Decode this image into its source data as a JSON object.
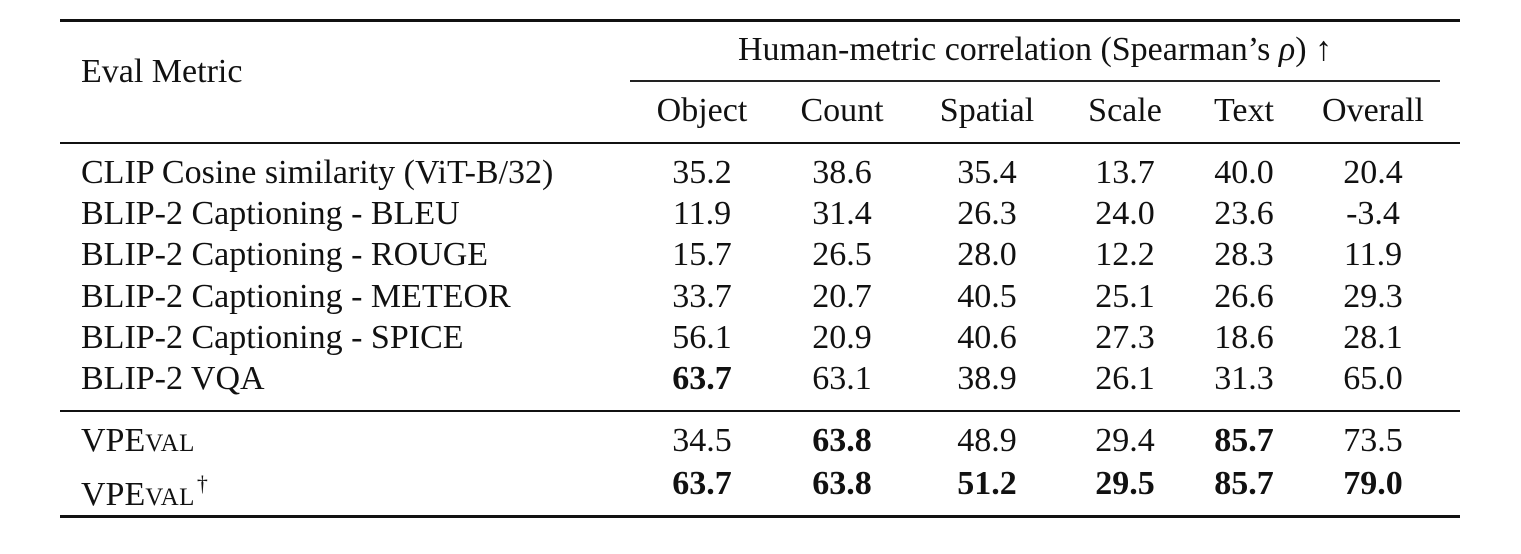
{
  "table": {
    "header": {
      "eval_metric_label": "Eval Metric",
      "group_label_prefix": "Human-metric correlation (Spearman’s ",
      "group_label_rho": "ρ",
      "group_label_suffix": ") ↑",
      "columns": [
        "Object",
        "Count",
        "Spatial",
        "Scale",
        "Text",
        "Overall"
      ]
    },
    "baseline_rows": [
      {
        "name": "CLIP Cosine similarity (ViT-B/32)",
        "values": [
          "35.2",
          "38.6",
          "35.4",
          "13.7",
          "40.0",
          "20.4"
        ],
        "bold": [
          false,
          false,
          false,
          false,
          false,
          false
        ]
      },
      {
        "name": "BLIP-2 Captioning - BLEU",
        "values": [
          "11.9",
          "31.4",
          "26.3",
          "24.0",
          "23.6",
          "-3.4"
        ],
        "bold": [
          false,
          false,
          false,
          false,
          false,
          false
        ]
      },
      {
        "name": "BLIP-2 Captioning - ROUGE",
        "values": [
          "15.7",
          "26.5",
          "28.0",
          "12.2",
          "28.3",
          "11.9"
        ],
        "bold": [
          false,
          false,
          false,
          false,
          false,
          false
        ]
      },
      {
        "name": "BLIP-2 Captioning - METEOR",
        "values": [
          "33.7",
          "20.7",
          "40.5",
          "25.1",
          "26.6",
          "29.3"
        ],
        "bold": [
          false,
          false,
          false,
          false,
          false,
          false
        ]
      },
      {
        "name": "BLIP-2 Captioning - SPICE",
        "values": [
          "56.1",
          "20.9",
          "40.6",
          "27.3",
          "18.6",
          "28.1"
        ],
        "bold": [
          false,
          false,
          false,
          false,
          false,
          false
        ]
      },
      {
        "name": "BLIP-2 VQA",
        "values": [
          "63.7",
          "63.1",
          "38.9",
          "26.1",
          "31.3",
          "65.0"
        ],
        "bold": [
          true,
          false,
          false,
          false,
          false,
          false
        ]
      }
    ],
    "vpeval_rows": [
      {
        "name_big1": "VPE",
        "name_small": "VAL",
        "dagger": "",
        "values": [
          "34.5",
          "63.8",
          "48.9",
          "29.4",
          "85.7",
          "73.5"
        ],
        "bold": [
          false,
          true,
          false,
          false,
          true,
          false
        ]
      },
      {
        "name_big1": "VPE",
        "name_small": "VAL",
        "dagger": "†",
        "values": [
          "63.7",
          "63.8",
          "51.2",
          "29.5",
          "85.7",
          "79.0"
        ],
        "bold": [
          true,
          true,
          true,
          true,
          true,
          true
        ]
      }
    ]
  }
}
